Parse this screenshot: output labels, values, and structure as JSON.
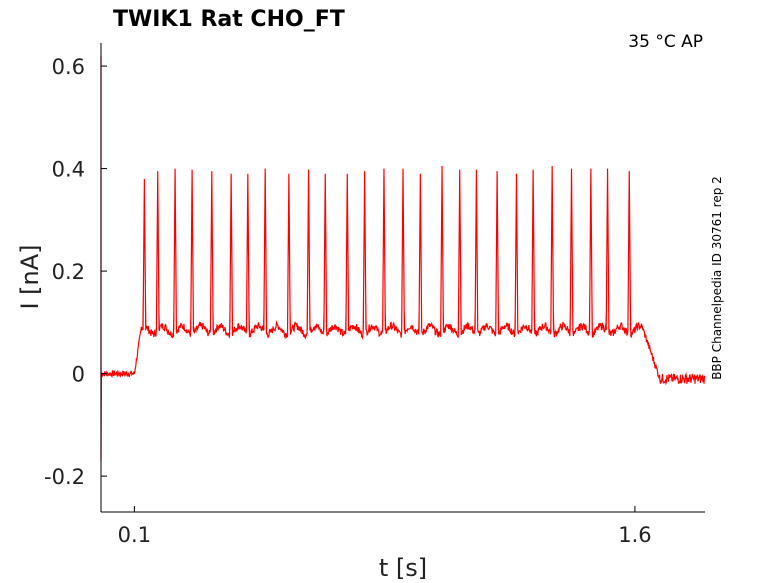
{
  "chart_data": {
    "type": "line",
    "title": "TWIK1  Rat  CHO_FT",
    "corner_annotation": "35 °C  AP",
    "side_annotation": "BBP Channelpedia ID 30761 rep 2",
    "xlabel": "t [s]",
    "ylabel": "I [nA]",
    "xlim": [
      0.0,
      1.81
    ],
    "ylim": [
      -0.27,
      0.645
    ],
    "x_ticks": [
      0.1,
      1.6
    ],
    "x_tick_labels": [
      "0.1",
      "1.6"
    ],
    "y_ticks": [
      0.6,
      0.4,
      0.2,
      0,
      -0.2
    ],
    "y_tick_labels": [
      "0.6",
      "0.4",
      "0.2",
      "0",
      "-0.2"
    ],
    "grid": false,
    "series": [
      {
        "color": "#ff0000",
        "baseline_before": 0.0,
        "plateau": 0.085,
        "baseline_after": -0.01,
        "step_on_s": 0.1,
        "step_off_s": 1.625,
        "transient_peak": 0.62,
        "transient_trough": -0.17,
        "spike_times_s": [
          0.13,
          0.17,
          0.222,
          0.273,
          0.332,
          0.39,
          0.44,
          0.492,
          0.563,
          0.622,
          0.672,
          0.738,
          0.79,
          0.848,
          0.905,
          0.957,
          1.022,
          1.075,
          1.125,
          1.187,
          1.245,
          1.295,
          1.352,
          1.41,
          1.468,
          1.518,
          1.583
        ],
        "spike_peaks_nA": [
          0.38,
          0.395,
          0.4,
          0.398,
          0.395,
          0.39,
          0.39,
          0.4,
          0.39,
          0.398,
          0.39,
          0.39,
          0.395,
          0.4,
          0.4,
          0.39,
          0.405,
          0.398,
          0.398,
          0.395,
          0.39,
          0.398,
          0.405,
          0.4,
          0.4,
          0.4,
          0.395
        ]
      }
    ]
  }
}
